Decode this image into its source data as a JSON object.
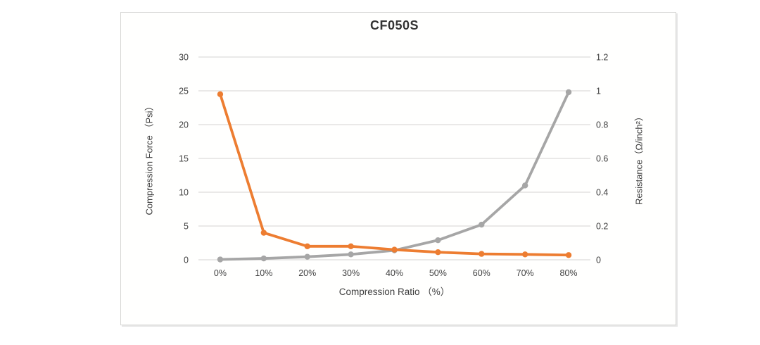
{
  "title": "CF050S",
  "chart_data": {
    "type": "line",
    "title": "CF050S",
    "categories": [
      "0%",
      "10%",
      "20%",
      "30%",
      "40%",
      "50%",
      "60%",
      "70%",
      "80%"
    ],
    "series": [
      {
        "name": "Compression Force",
        "axis": "left",
        "color": "#a6a6a6",
        "values": [
          0.05,
          0.2,
          0.45,
          0.8,
          1.4,
          2.9,
          5.2,
          11,
          24.8
        ]
      },
      {
        "name": "Resistance",
        "axis": "right",
        "color": "#ed7d31",
        "values": [
          0.98,
          0.16,
          0.08,
          0.08,
          0.06,
          0.045,
          0.035,
          0.032,
          0.028
        ]
      }
    ],
    "left_axis": {
      "label": "Compression Force （Psi）",
      "min": 0,
      "max": 30,
      "ticks": [
        0,
        5,
        10,
        15,
        20,
        25,
        30
      ]
    },
    "right_axis": {
      "label": "Resistance（Ω/inch²）",
      "min": 0,
      "max": 1.2,
      "ticks": [
        0,
        0.2,
        0.4,
        0.6,
        0.8,
        1,
        1.2
      ]
    },
    "x_axis": {
      "label": "Compression Ratio （%）"
    },
    "grid": true,
    "legend": "none",
    "grid_color": "#dedcda",
    "background": "#fffffe",
    "border_color": "#d6d6d4"
  }
}
